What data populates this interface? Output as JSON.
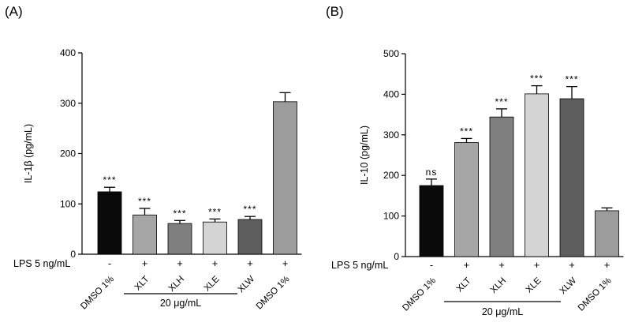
{
  "chart_data": [
    {
      "type": "bar",
      "panel_label": "(A)",
      "ylabel": "IL-1β (pg/mL)",
      "ylim": [
        0,
        400
      ],
      "yticks": [
        0,
        100,
        200,
        300,
        400
      ],
      "categories": [
        "DMSO 1%",
        "XLT",
        "XLH",
        "XLE",
        "XLW",
        "DMSO 1%"
      ],
      "values": [
        124,
        78,
        61,
        64,
        69,
        303
      ],
      "errors": [
        9,
        13,
        6,
        6,
        6,
        18
      ],
      "lps": [
        "-",
        "+",
        "+",
        "+",
        "+",
        "+"
      ],
      "significance": [
        "***",
        "***",
        "***",
        "***",
        "***",
        ""
      ],
      "colors": [
        "#0a0a0a",
        "#a6a6a6",
        "#7f7f7f",
        "#d4d4d4",
        "#5e5e5e",
        "#9c9c9c"
      ],
      "treatment_label": "LPS 5 ng/mL",
      "group_label": "20 μg/mL"
    },
    {
      "type": "bar",
      "panel_label": "(B)",
      "ylabel": "IL-10 (pg/mL)",
      "ylim": [
        0,
        500
      ],
      "yticks": [
        0,
        100,
        200,
        300,
        400,
        500
      ],
      "categories": [
        "DMSO 1%",
        "XLT",
        "XLH",
        "XLE",
        "XLW",
        "DMSO 1%"
      ],
      "values": [
        175,
        281,
        344,
        401,
        389,
        113
      ],
      "errors": [
        16,
        10,
        20,
        20,
        30,
        7
      ],
      "lps": [
        "-",
        "+",
        "+",
        "+",
        "+",
        "+"
      ],
      "significance": [
        "ns",
        "***",
        "***",
        "***",
        "***",
        ""
      ],
      "colors": [
        "#0a0a0a",
        "#a6a6a6",
        "#7f7f7f",
        "#d4d4d4",
        "#5e5e5e",
        "#9c9c9c"
      ],
      "treatment_label": "LPS 5 ng/mL",
      "group_label": "20 μg/mL"
    }
  ]
}
